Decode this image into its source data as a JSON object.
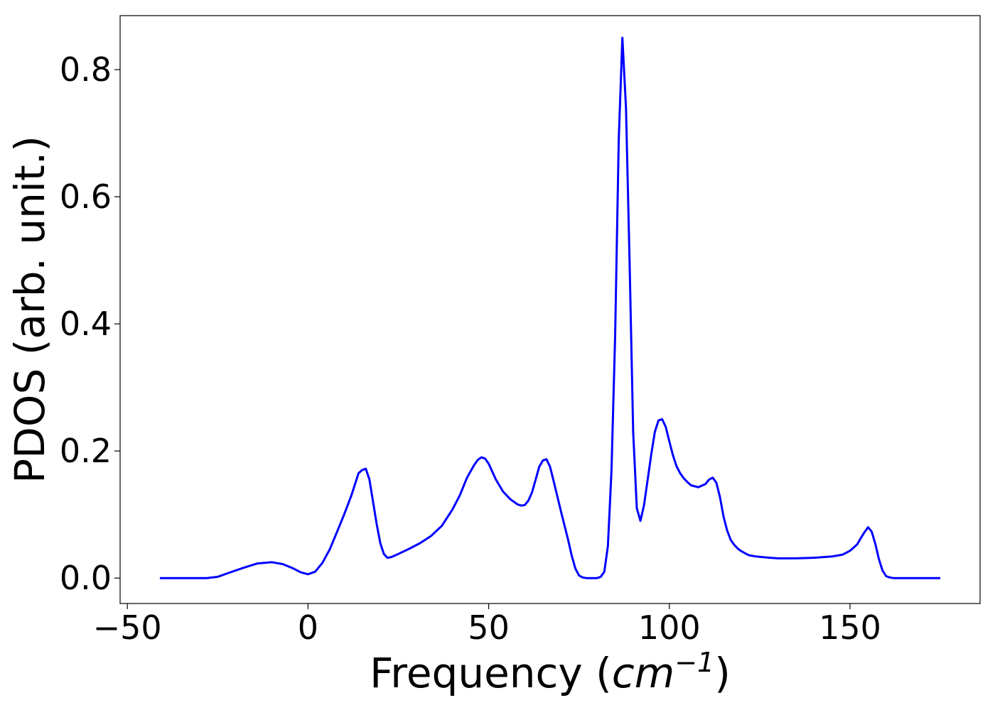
{
  "chart_data": {
    "type": "line",
    "xlabel": {
      "prefix": "Frequency (",
      "unit": "cm",
      "exponent": "−1",
      "suffix": ")"
    },
    "ylabel": "PDOS (arb. unit.)",
    "xlim": [
      -52,
      186
    ],
    "ylim": [
      -0.04,
      0.885
    ],
    "xticks": [
      -50,
      0,
      50,
      100,
      150
    ],
    "xtick_labels": [
      "−50",
      "0",
      "50",
      "100",
      "150"
    ],
    "yticks": [
      0.0,
      0.2,
      0.4,
      0.6,
      0.8
    ],
    "ytick_labels": [
      "0.0",
      "0.2",
      "0.4",
      "0.6",
      "0.8"
    ],
    "grid": false,
    "colors": {
      "line": "#0000ff",
      "axes": "#000000"
    },
    "series": [
      {
        "x": [
          -41,
          -35,
          -28,
          -25,
          -22,
          -18,
          -14,
          -10,
          -7,
          -4,
          -2,
          0,
          2,
          4,
          6,
          8,
          10,
          12,
          14,
          15,
          16,
          17,
          18,
          19,
          20,
          21,
          22,
          23,
          25,
          28,
          31,
          34,
          37,
          40,
          42,
          44,
          46,
          47,
          48,
          49,
          50,
          52,
          54,
          56,
          58,
          59,
          60,
          61,
          62,
          63,
          64,
          65,
          66,
          67,
          68,
          70,
          72,
          73,
          74,
          75,
          76,
          77,
          78,
          80,
          81,
          82,
          83,
          83.5,
          84,
          85,
          86,
          87,
          88,
          89,
          90,
          91,
          92,
          93,
          94,
          95,
          96,
          97,
          98,
          99,
          100,
          101,
          102,
          103,
          104,
          105,
          106,
          108,
          110,
          111,
          112,
          113,
          114,
          115,
          116,
          117,
          118,
          119,
          120,
          121,
          122,
          124,
          126,
          128,
          130,
          135,
          140,
          145,
          148,
          150,
          152,
          153,
          154,
          155,
          156,
          157,
          158,
          159,
          160,
          161,
          162,
          163,
          165,
          170,
          175
        ],
        "y": [
          0.0,
          0.0,
          0.0,
          0.002,
          0.008,
          0.016,
          0.023,
          0.025,
          0.022,
          0.015,
          0.009,
          0.006,
          0.01,
          0.024,
          0.045,
          0.072,
          0.1,
          0.13,
          0.165,
          0.17,
          0.172,
          0.155,
          0.12,
          0.085,
          0.055,
          0.038,
          0.032,
          0.033,
          0.038,
          0.046,
          0.055,
          0.066,
          0.082,
          0.108,
          0.13,
          0.158,
          0.178,
          0.186,
          0.19,
          0.188,
          0.18,
          0.155,
          0.136,
          0.124,
          0.116,
          0.114,
          0.115,
          0.122,
          0.135,
          0.155,
          0.175,
          0.185,
          0.187,
          0.175,
          0.152,
          0.105,
          0.06,
          0.035,
          0.015,
          0.004,
          0.001,
          0.0,
          0.0,
          0.0,
          0.002,
          0.01,
          0.05,
          0.11,
          0.17,
          0.38,
          0.69,
          0.85,
          0.74,
          0.5,
          0.23,
          0.11,
          0.09,
          0.115,
          0.155,
          0.195,
          0.23,
          0.248,
          0.25,
          0.238,
          0.215,
          0.193,
          0.176,
          0.165,
          0.157,
          0.151,
          0.146,
          0.143,
          0.148,
          0.155,
          0.158,
          0.15,
          0.128,
          0.097,
          0.075,
          0.06,
          0.052,
          0.046,
          0.042,
          0.039,
          0.036,
          0.034,
          0.033,
          0.032,
          0.031,
          0.031,
          0.032,
          0.034,
          0.037,
          0.043,
          0.053,
          0.063,
          0.072,
          0.08,
          0.073,
          0.054,
          0.03,
          0.012,
          0.003,
          0.001,
          0.0,
          0.0,
          0.0,
          0.0,
          0.0
        ]
      }
    ]
  }
}
